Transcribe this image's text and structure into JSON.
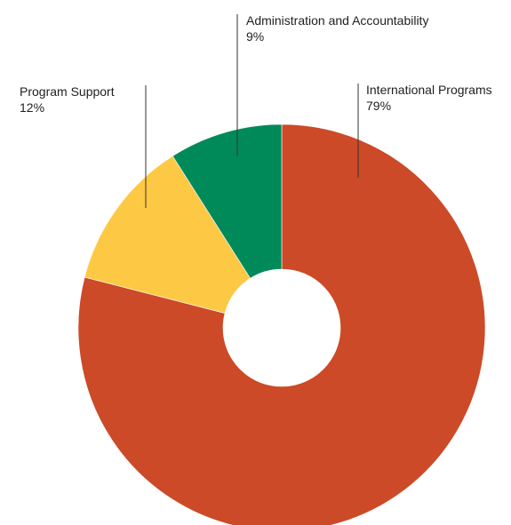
{
  "chart_data": {
    "type": "pie",
    "variant": "donut",
    "categories": [
      "International Programs",
      "Program Support",
      "Administration and Accountability"
    ],
    "values": [
      79,
      12,
      9
    ],
    "value_labels": [
      "79%",
      "12%",
      "9%"
    ],
    "colors": [
      "#cc4a27",
      "#fdc844",
      "#008a5a"
    ],
    "title": "",
    "legend": "none (direct labels with leader lines)"
  }
}
